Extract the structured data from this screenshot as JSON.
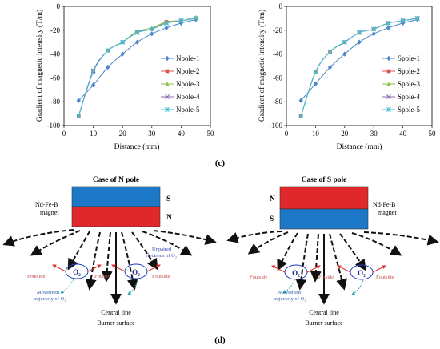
{
  "chart_data": [
    {
      "type": "line",
      "xlabel": "Distance (mm)",
      "ylabel": "Gradient of magnetic intensity (T/m)",
      "xlim": [
        0,
        50
      ],
      "ylim": [
        -100,
        0
      ],
      "xticks": [
        "0",
        "10",
        "20",
        "30",
        "40",
        "50"
      ],
      "yticks": [
        "0",
        "-20",
        "-40",
        "-60",
        "-80",
        "-100"
      ],
      "grid": false,
      "legend_position": "bottom-right",
      "x": [
        5,
        10,
        15,
        20,
        25,
        30,
        35,
        40,
        45
      ],
      "series": [
        {
          "name": "Npole-1",
          "color": "#4a86c8",
          "marker": "diamond",
          "values": [
            -79,
            -66,
            -51,
            -40,
            -30,
            -23,
            -18,
            -14,
            -11
          ]
        },
        {
          "name": "Npole-2",
          "color": "#d9534f",
          "marker": "square",
          "values": [
            -92,
            -54,
            -37,
            -30,
            -21,
            -19,
            -13,
            -12,
            -10
          ]
        },
        {
          "name": "Npole-3",
          "color": "#8cc34a",
          "marker": "triangle",
          "values": [
            -92,
            -54,
            -37,
            -30,
            -21,
            -18,
            -13,
            -12,
            -9
          ]
        },
        {
          "name": "Npole-4",
          "color": "#8e6bb3",
          "marker": "x",
          "values": [
            -92,
            -54,
            -37,
            -30,
            -22,
            -19,
            -14,
            -12,
            -10
          ]
        },
        {
          "name": "Npole-5",
          "color": "#3fc0d8",
          "marker": "star",
          "values": [
            -92,
            -55,
            -37,
            -30,
            -22,
            -19,
            -14,
            -12,
            -10
          ]
        }
      ]
    },
    {
      "type": "line",
      "xlabel": "Distance (mm)",
      "ylabel": "Gradient of magnetic intensity (T/m)",
      "xlim": [
        0,
        50
      ],
      "ylim": [
        -100,
        0
      ],
      "xticks": [
        "0",
        "10",
        "20",
        "30",
        "40",
        "50"
      ],
      "yticks": [
        "0",
        "-20",
        "-40",
        "-60",
        "-80",
        "-100"
      ],
      "grid": false,
      "legend_position": "bottom-right",
      "x": [
        5,
        10,
        15,
        20,
        25,
        30,
        35,
        40,
        45
      ],
      "series": [
        {
          "name": "Spole-1",
          "color": "#4a86c8",
          "marker": "diamond",
          "values": [
            -79,
            -65,
            -51,
            -40,
            -30,
            -23,
            -18,
            -14,
            -11
          ]
        },
        {
          "name": "Spole-2",
          "color": "#d9534f",
          "marker": "square",
          "values": [
            -92,
            -55,
            -38,
            -30,
            -22,
            -19,
            -14,
            -12,
            -10
          ]
        },
        {
          "name": "Spole-3",
          "color": "#8cc34a",
          "marker": "triangle",
          "values": [
            -92,
            -55,
            -38,
            -30,
            -22,
            -19,
            -14,
            -12,
            -10
          ]
        },
        {
          "name": "Spole-4",
          "color": "#8e6bb3",
          "marker": "x",
          "values": [
            -92,
            -55,
            -38,
            -30,
            -22,
            -19,
            -14,
            -12,
            -10
          ]
        },
        {
          "name": "Spole-5",
          "color": "#3fc0d8",
          "marker": "star",
          "values": [
            -92,
            -55,
            -38,
            -30,
            -22,
            -19,
            -14,
            -12,
            -10
          ]
        }
      ]
    }
  ],
  "panel_c_label": "(c)",
  "panel_d_label": "(d)",
  "diagram": {
    "left": {
      "title": "Case of N pole",
      "magnet_label_1": "Nd-Fe-B",
      "magnet_label_2": "magnet",
      "top_pole": "S",
      "bottom_pole": "N",
      "top_color": "#1e78c8",
      "bottom_color": "#e0282a",
      "unpaired_1": "Unpaired",
      "unpaired_2": "electrons of O₂",
      "movement_1": "Movement",
      "movement_2": "trajectory of O₂",
      "o2": "O₂",
      "f_outside": "Foutside",
      "f_inside": "Finside",
      "central_line": "Central line",
      "burner_surface": "Burner surface"
    },
    "right": {
      "title": "Case of S pole",
      "magnet_label_1": "Nd-Fe-B",
      "magnet_label_2": "magnet",
      "top_pole": "N",
      "bottom_pole": "S",
      "top_color": "#e0282a",
      "bottom_color": "#1e78c8",
      "movement_1": "Movement",
      "movement_2": "trajectory of O₂",
      "o2": "O₂",
      "f_outside": "Foutside",
      "f_inside": "Finside",
      "central_line": "Central line",
      "burner_surface": "Burner surface"
    }
  }
}
